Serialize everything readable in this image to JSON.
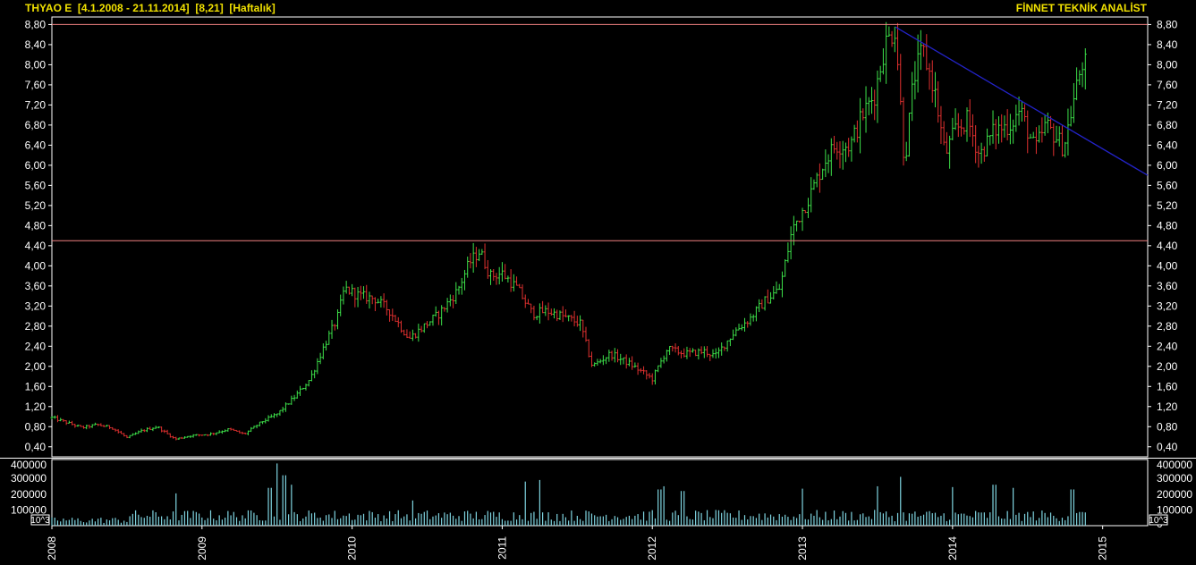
{
  "header": {
    "left": "THYAO E  [4.1.2008 - 21.11.2014]  [8,21]  [Haftalık]",
    "right": "FİNNET TEKNİK ANALİST"
  },
  "volume_scale_tag": "10^3",
  "colors": {
    "background": "#000000",
    "up_candle": "#3de24a",
    "down_candle": "#e0302f",
    "volume_bar": "#7fd4e0",
    "horizontal_line": "#f08080",
    "trendline": "#2323c8",
    "header_text": "#f0e000",
    "axis_text": "#ffffff"
  },
  "chart_data": [
    {
      "type": "line",
      "subtype": "ohlc-weekly",
      "title": "THYAO E  [4.1.2008 - 21.11.2014]  [8,21]  [Haftalık]",
      "ylim": [
        0.2,
        8.95
      ],
      "y_ticks": [
        "0,40",
        "0,80",
        "1,20",
        "1,60",
        "2,00",
        "2,40",
        "2,80",
        "3,20",
        "3,60",
        "4,00",
        "4,40",
        "4,80",
        "5,20",
        "5,60",
        "6,00",
        "6,40",
        "6,80",
        "7,20",
        "7,60",
        "8,00",
        "8,40",
        "8,80"
      ],
      "y_tick_values": [
        0.4,
        0.8,
        1.2,
        1.6,
        2.0,
        2.4,
        2.8,
        3.2,
        3.6,
        4.0,
        4.4,
        4.8,
        5.2,
        5.6,
        6.0,
        6.4,
        6.8,
        7.2,
        7.6,
        8.0,
        8.4,
        8.8
      ],
      "x_ticks": [
        "2008",
        "2009",
        "2010",
        "2011",
        "2012",
        "2013",
        "2014",
        "2015"
      ],
      "x_tick_values": [
        2008,
        2009,
        2010,
        2011,
        2012,
        2013,
        2014,
        2015
      ],
      "xlim": [
        2008,
        2015.3
      ],
      "last_close": 8.21,
      "price_path": [
        [
          2008.0,
          0.98
        ],
        [
          2008.1,
          0.88
        ],
        [
          2008.2,
          0.78
        ],
        [
          2008.3,
          0.84
        ],
        [
          2008.4,
          0.78
        ],
        [
          2008.5,
          0.58
        ],
        [
          2008.6,
          0.72
        ],
        [
          2008.7,
          0.8
        ],
        [
          2008.82,
          0.55
        ],
        [
          2008.92,
          0.62
        ],
        [
          2009.05,
          0.65
        ],
        [
          2009.18,
          0.75
        ],
        [
          2009.28,
          0.65
        ],
        [
          2009.4,
          0.9
        ],
        [
          2009.5,
          1.05
        ],
        [
          2009.62,
          1.4
        ],
        [
          2009.72,
          1.75
        ],
        [
          2009.82,
          2.45
        ],
        [
          2009.9,
          2.95
        ],
        [
          2009.95,
          3.55
        ],
        [
          2010.05,
          3.4
        ],
        [
          2010.15,
          3.35
        ],
        [
          2010.25,
          3.1
        ],
        [
          2010.38,
          2.55
        ],
        [
          2010.48,
          2.8
        ],
        [
          2010.58,
          3.05
        ],
        [
          2010.7,
          3.5
        ],
        [
          2010.78,
          4.05
        ],
        [
          2010.85,
          4.3
        ],
        [
          2010.92,
          3.8
        ],
        [
          2011.0,
          3.85
        ],
        [
          2011.1,
          3.55
        ],
        [
          2011.2,
          3.05
        ],
        [
          2011.3,
          3.1
        ],
        [
          2011.4,
          3.0
        ],
        [
          2011.52,
          2.85
        ],
        [
          2011.6,
          2.0
        ],
        [
          2011.72,
          2.25
        ],
        [
          2011.85,
          2.05
        ],
        [
          2012.0,
          1.75
        ],
        [
          2012.1,
          2.35
        ],
        [
          2012.22,
          2.25
        ],
        [
          2012.35,
          2.3
        ],
        [
          2012.42,
          2.2
        ],
        [
          2012.55,
          2.7
        ],
        [
          2012.65,
          2.95
        ],
        [
          2012.75,
          3.3
        ],
        [
          2012.85,
          3.55
        ],
        [
          2012.93,
          4.7
        ],
        [
          2013.05,
          5.4
        ],
        [
          2013.15,
          6.1
        ],
        [
          2013.22,
          6.4
        ],
        [
          2013.32,
          6.4
        ],
        [
          2013.4,
          7.0
        ],
        [
          2013.48,
          7.4
        ],
        [
          2013.55,
          8.4
        ],
        [
          2013.62,
          8.75
        ],
        [
          2013.68,
          6.0
        ],
        [
          2013.74,
          7.7
        ],
        [
          2013.8,
          8.3
        ],
        [
          2013.88,
          7.5
        ],
        [
          2013.95,
          6.2
        ],
        [
          2014.02,
          6.7
        ],
        [
          2014.1,
          6.9
        ],
        [
          2014.18,
          6.2
        ],
        [
          2014.28,
          6.7
        ],
        [
          2014.38,
          6.8
        ],
        [
          2014.45,
          7.1
        ],
        [
          2014.55,
          6.3
        ],
        [
          2014.62,
          6.8
        ],
        [
          2014.68,
          6.6
        ],
        [
          2014.74,
          6.35
        ],
        [
          2014.8,
          7.2
        ],
        [
          2014.86,
          8.0
        ],
        [
          2014.89,
          8.21
        ]
      ],
      "horizontal_lines": [
        8.8,
        4.5
      ],
      "trendline": {
        "from": [
          2013.62,
          8.75
        ],
        "to": [
          2015.3,
          5.8
        ]
      }
    },
    {
      "type": "bar",
      "title": "",
      "ylim": [
        0,
        420000
      ],
      "y_ticks": [
        "400000",
        "300000",
        "200000",
        "100000",
        "0"
      ],
      "y_tick_values": [
        400000,
        300000,
        200000,
        100000,
        0
      ],
      "volume_spikes": [
        [
          2008.82,
          205000
        ],
        [
          2009.45,
          240000
        ],
        [
          2009.5,
          395000
        ],
        [
          2009.55,
          320000
        ],
        [
          2009.6,
          260000
        ],
        [
          2010.4,
          160000
        ],
        [
          2011.15,
          280000
        ],
        [
          2011.25,
          290000
        ],
        [
          2012.05,
          230000
        ],
        [
          2012.08,
          250000
        ],
        [
          2012.2,
          220000
        ],
        [
          2013.0,
          235000
        ],
        [
          2013.5,
          250000
        ],
        [
          2013.65,
          310000
        ],
        [
          2014.0,
          245000
        ],
        [
          2014.28,
          260000
        ],
        [
          2014.4,
          240000
        ],
        [
          2014.8,
          230000
        ]
      ],
      "typical_volume": 80000
    }
  ]
}
